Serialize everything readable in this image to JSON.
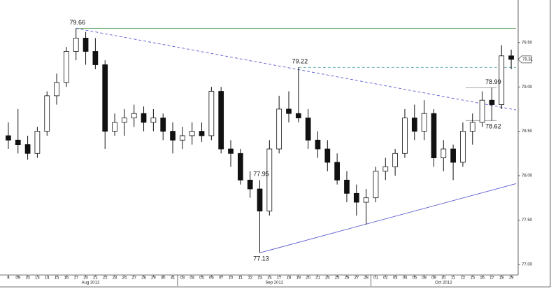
{
  "chart_data": {
    "type": "candlestick",
    "categories": [
      "8",
      "09",
      "10",
      "13",
      "14",
      "15",
      "16",
      "17",
      "20",
      "21",
      "22",
      "23",
      "24",
      "27",
      "28",
      "29",
      "30",
      "31",
      "03",
      "04",
      "05",
      "06",
      "07",
      "10",
      "11",
      "12",
      "13",
      "14",
      "17",
      "18",
      "19",
      "20",
      "21",
      "24",
      "25",
      "26",
      "27",
      "28",
      "01",
      "02",
      "03",
      "04",
      "05",
      "08",
      "09",
      "10",
      "11",
      "12",
      "15",
      "16",
      "17",
      "18",
      "19"
    ],
    "months": [
      "Aug 2012",
      "Sep 2012",
      "Oct 2012"
    ],
    "open": [
      78.45,
      78.4,
      78.35,
      78.25,
      78.5,
      78.9,
      79.05,
      79.4,
      79.55,
      79.4,
      79.25,
      78.5,
      78.6,
      78.65,
      78.7,
      78.6,
      78.65,
      78.5,
      78.4,
      78.45,
      78.5,
      78.45,
      78.95,
      78.3,
      78.25,
      77.95,
      77.85,
      77.6,
      78.3,
      78.75,
      78.7,
      78.65,
      78.4,
      78.3,
      78.15,
      77.95,
      77.8,
      77.7,
      77.75,
      78.05,
      78.1,
      78.25,
      78.65,
      78.5,
      78.7,
      78.2,
      78.3,
      78.15,
      78.5,
      78.6,
      78.85,
      78.8,
      79.35
    ],
    "high": [
      78.6,
      78.75,
      78.45,
      78.55,
      78.95,
      79.15,
      79.45,
      79.66,
      79.62,
      79.55,
      79.3,
      78.7,
      78.75,
      78.8,
      78.78,
      78.75,
      78.7,
      78.6,
      78.55,
      78.6,
      78.6,
      79.0,
      79.0,
      78.4,
      78.3,
      78.05,
      77.95,
      78.4,
      78.9,
      78.95,
      79.22,
      78.75,
      78.5,
      78.4,
      78.25,
      78.05,
      77.9,
      77.85,
      78.1,
      78.2,
      78.3,
      78.75,
      78.8,
      78.85,
      78.75,
      78.4,
      78.35,
      78.6,
      78.7,
      78.95,
      78.99,
      79.47,
      79.42
    ],
    "low": [
      78.3,
      78.25,
      78.18,
      78.2,
      78.45,
      78.8,
      79.0,
      79.3,
      79.25,
      79.2,
      78.3,
      78.45,
      78.45,
      78.55,
      78.5,
      78.5,
      78.4,
      78.25,
      78.3,
      78.35,
      78.38,
      78.4,
      78.25,
      78.1,
      77.9,
      77.75,
      77.13,
      77.55,
      78.25,
      78.6,
      78.6,
      78.3,
      78.2,
      78.05,
      77.9,
      77.7,
      77.55,
      77.45,
      77.7,
      77.95,
      78.0,
      78.2,
      78.4,
      78.4,
      78.1,
      78.05,
      77.95,
      78.1,
      78.35,
      78.55,
      78.62,
      78.75,
      79.2
    ],
    "close": [
      78.4,
      78.35,
      78.25,
      78.5,
      78.9,
      79.05,
      79.4,
      79.55,
      79.4,
      79.25,
      78.5,
      78.6,
      78.65,
      78.7,
      78.6,
      78.65,
      78.5,
      78.4,
      78.45,
      78.5,
      78.45,
      78.95,
      78.3,
      78.25,
      77.95,
      77.85,
      77.6,
      78.3,
      78.75,
      78.7,
      78.65,
      78.4,
      78.3,
      78.15,
      77.95,
      77.8,
      77.7,
      77.75,
      78.05,
      78.1,
      78.25,
      78.65,
      78.5,
      78.7,
      78.2,
      78.3,
      78.15,
      78.5,
      78.6,
      78.85,
      78.8,
      79.35,
      79.31
    ],
    "color": "#111111",
    "ylim": [
      76.88,
      79.94
    ],
    "yticks": [
      {
        "value": 77,
        "label": "77.00"
      },
      {
        "value": 77.5,
        "label": "77.50"
      },
      {
        "value": 78,
        "label": "78.00"
      },
      {
        "value": 78.5,
        "label": "78.50"
      },
      {
        "value": 79,
        "label": "79.00"
      },
      {
        "value": 79.5,
        "label": "79.50"
      }
    ],
    "last_price": {
      "value": 79.31,
      "label": "79.31"
    },
    "annotations": [
      {
        "value": 79.66,
        "label": "79.66"
      },
      {
        "value": 79.22,
        "label": "79.22"
      },
      {
        "value": 77.13,
        "label": "77.13"
      },
      {
        "value": 77.95,
        "label": "77.95"
      },
      {
        "value": 78.62,
        "label": "78.62"
      },
      {
        "value": 78.99,
        "label": "78.99"
      }
    ],
    "lines": [
      {
        "from": 79.66,
        "to": 79.66,
        "color": "#6aa86a",
        "dashed": false,
        "kind": "trend"
      },
      {
        "from": 79.66,
        "to": 78.74,
        "color": "#5a5acf",
        "dashed": true,
        "kind": "trend"
      },
      {
        "from": 79.22,
        "to": 79.22,
        "color": "#5aa6a6",
        "dashed": true,
        "kind": "trend"
      },
      {
        "from": 77.13,
        "to": 77.91,
        "color": "#5a5acf",
        "dashed": false,
        "kind": "trend"
      },
      {
        "from": 78.99,
        "to": 78.99,
        "color": "#999999",
        "dashed": false,
        "kind": "marker"
      },
      {
        "from": 78.62,
        "to": 78.62,
        "color": "#999999",
        "dashed": false,
        "kind": "marker"
      }
    ]
  }
}
